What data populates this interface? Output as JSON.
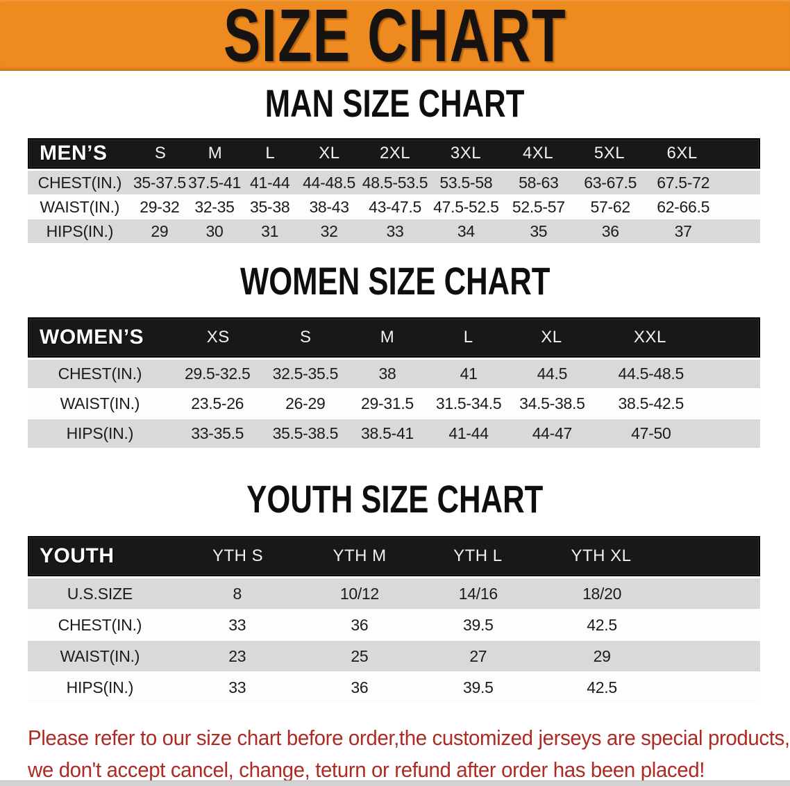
{
  "banner": {
    "title": "SIZE CHART",
    "bg_color": "#ED8A20",
    "text_color": "#161310"
  },
  "sections": [
    {
      "heading": "MAN SIZE CHART",
      "table": {
        "header_label": "MEN’S",
        "columns": [
          "S",
          "M",
          "L",
          "XL",
          "2XL",
          "3XL",
          "4XL",
          "5XL",
          "6XL"
        ],
        "rows": [
          {
            "label": "CHEST(IN.)",
            "values": [
              "35-37.5",
              "37.5-41",
              "41-44",
              "44-48.5",
              "48.5-53.5",
              "53.5-58",
              "58-63",
              "63-67.5",
              "67.5-72"
            ]
          },
          {
            "label": "WAIST(IN.)",
            "values": [
              "29-32",
              "32-35",
              "35-38",
              "38-43",
              "43-47.5",
              "47.5-52.5",
              "52.5-57",
              "57-62",
              "62-66.5"
            ]
          },
          {
            "label": "HIPS(IN.)",
            "values": [
              "29",
              "30",
              "31",
              "32",
              "33",
              "34",
              "35",
              "36",
              "37"
            ]
          }
        ]
      }
    },
    {
      "heading": "WOMEN SIZE CHART",
      "table": {
        "header_label": "WOMEN’S",
        "columns": [
          "XS",
          "S",
          "M",
          "L",
          "XL",
          "XXL"
        ],
        "rows": [
          {
            "label": "CHEST(IN.)",
            "values": [
              "29.5-32.5",
              "32.5-35.5",
              "38",
              "41",
              "44.5",
              "44.5-48.5"
            ]
          },
          {
            "label": "WAIST(IN.)",
            "values": [
              "23.5-26",
              "26-29",
              "29-31.5",
              "31.5-34.5",
              "34.5-38.5",
              "38.5-42.5"
            ]
          },
          {
            "label": "HIPS(IN.)",
            "values": [
              "33-35.5",
              "35.5-38.5",
              "38.5-41",
              "41-44",
              "44-47",
              "47-50"
            ]
          }
        ]
      }
    },
    {
      "heading": "YOUTH SIZE CHART",
      "table": {
        "header_label": "YOUTH",
        "columns": [
          "YTH S",
          "YTH M",
          "YTH L",
          "YTH XL"
        ],
        "rows": [
          {
            "label": "U.S.SIZE",
            "values": [
              "8",
              "10/12",
              "14/16",
              "18/20"
            ]
          },
          {
            "label": "CHEST(IN.)",
            "values": [
              "33",
              "36",
              "39.5",
              "42.5"
            ]
          },
          {
            "label": "WAIST(IN.)",
            "values": [
              "23",
              "25",
              "27",
              "29"
            ]
          },
          {
            "label": "HIPS(IN.)",
            "values": [
              "33",
              "36",
              "39.5",
              "42.5"
            ]
          }
        ]
      }
    }
  ],
  "footer_note": {
    "line1": "Please refer to our size chart before order,the customized jerseys are special products,",
    "line2": "we don't accept cancel, change, teturn or refund after order has been placed!",
    "text_color": "#AE2B23"
  },
  "colors": {
    "row_shade": "#D9D9D9",
    "row_plain": "#FDFDFD",
    "table_header_bg": "#181818",
    "table_header_text": "#FFFFFF"
  }
}
